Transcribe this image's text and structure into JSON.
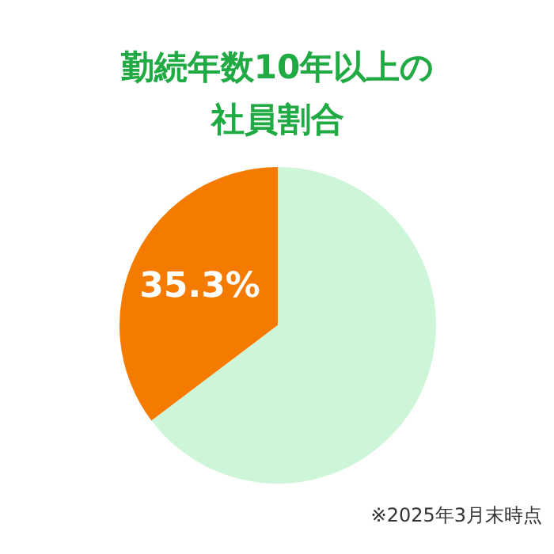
{
  "chart_data": {
    "type": "pie",
    "title": "勤続年数10年以上の社員割合",
    "categories": [
      null,
      null
    ],
    "values": [
      35.3,
      64.7
    ],
    "colors": [
      "#f47b00",
      "#cdf6d9"
    ],
    "value_labels": [
      "35.3%",
      null
    ],
    "annotations": [
      "※2025年3月末時点"
    ]
  }
}
